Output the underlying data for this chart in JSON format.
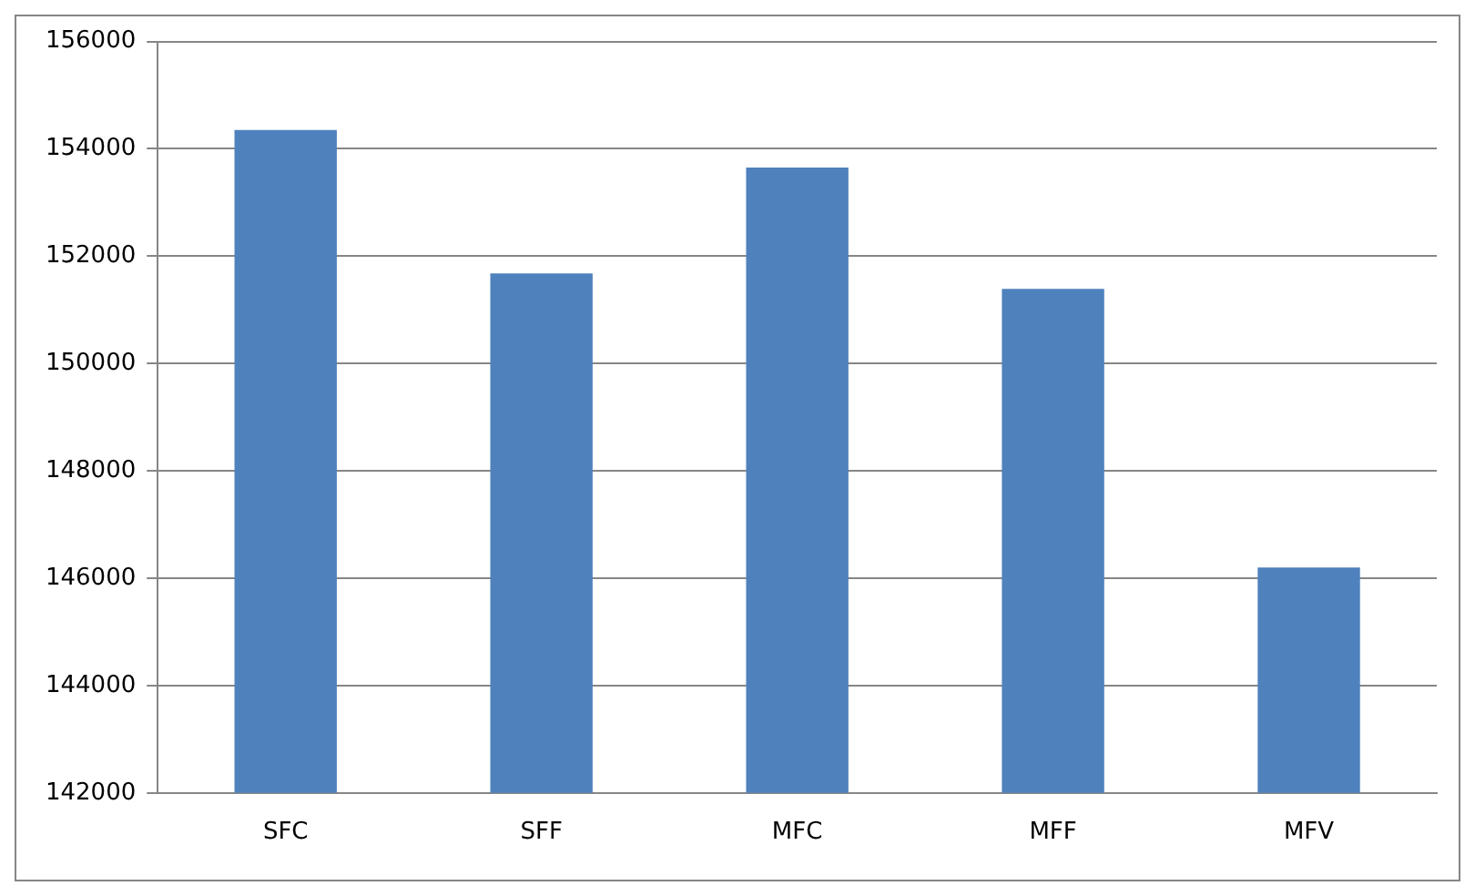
{
  "chart_data": {
    "type": "bar",
    "categories": [
      "SFC",
      "SFF",
      "MFC",
      "MFF",
      "MFV"
    ],
    "values": [
      154350,
      151680,
      153650,
      151390,
      146200
    ],
    "color": "#4f81bd",
    "ylim": [
      142000,
      156000
    ],
    "yticks": [
      142000,
      144000,
      146000,
      148000,
      150000,
      152000,
      154000,
      156000
    ],
    "grid": "y",
    "legend": false
  }
}
